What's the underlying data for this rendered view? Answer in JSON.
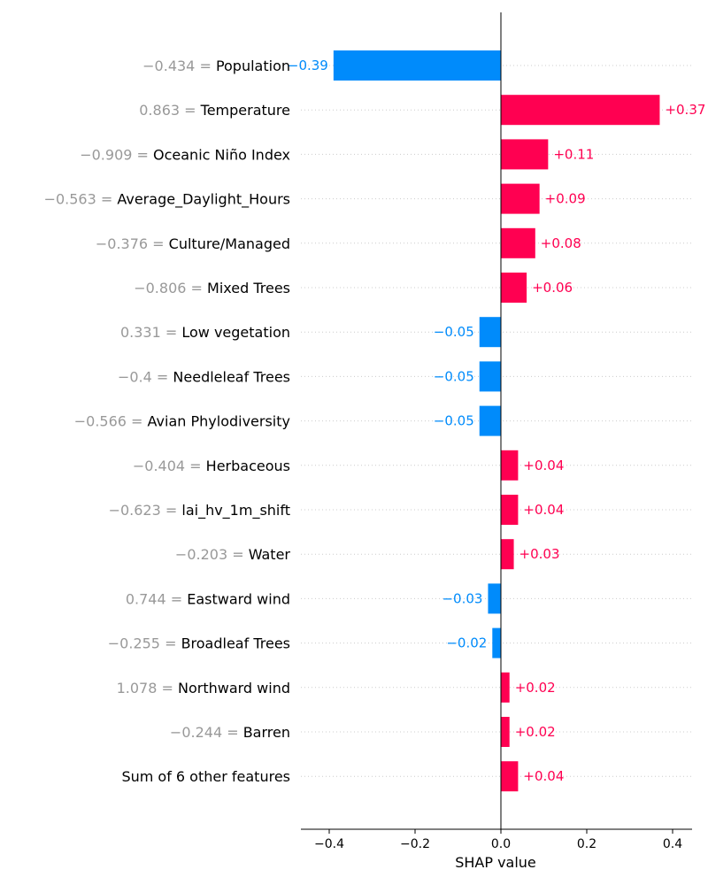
{
  "chart_data": {
    "type": "bar",
    "orientation": "horizontal",
    "xlabel": "SHAP value",
    "xlim": [
      -0.46,
      0.46
    ],
    "xticks": [
      -0.4,
      -0.2,
      0.0,
      0.2,
      0.4
    ],
    "xtick_labels": [
      "−0.4",
      "−0.2",
      "0.0",
      "0.2",
      "0.4"
    ],
    "colors": {
      "positive": "#ff0051",
      "negative": "#008bfb",
      "feature_value": "#999999",
      "feature_name": "#000000"
    },
    "features": [
      {
        "value_text": "−0.434 =",
        "name": "Population",
        "shap": -0.39,
        "label": "−0.39"
      },
      {
        "value_text": "0.863 =",
        "name": "Temperature",
        "shap": 0.37,
        "label": "+0.37"
      },
      {
        "value_text": "−0.909 =",
        "name": "Oceanic Niño Index",
        "shap": 0.11,
        "label": "+0.11"
      },
      {
        "value_text": "−0.563 =",
        "name": "Average_Daylight_Hours",
        "shap": 0.09,
        "label": "+0.09"
      },
      {
        "value_text": "−0.376 =",
        "name": "Culture/Managed",
        "shap": 0.08,
        "label": "+0.08"
      },
      {
        "value_text": "−0.806 =",
        "name": "Mixed Trees",
        "shap": 0.06,
        "label": "+0.06"
      },
      {
        "value_text": "0.331 =",
        "name": "Low vegetation",
        "shap": -0.05,
        "label": "−0.05"
      },
      {
        "value_text": "−0.4 =",
        "name": "Needleleaf Trees",
        "shap": -0.05,
        "label": "−0.05"
      },
      {
        "value_text": "−0.566 =",
        "name": "Avian Phylodiversity",
        "shap": -0.05,
        "label": "−0.05"
      },
      {
        "value_text": "−0.404 =",
        "name": "Herbaceous",
        "shap": 0.04,
        "label": "+0.04"
      },
      {
        "value_text": "−0.623 =",
        "name": "lai_hv_1m_shift",
        "shap": 0.04,
        "label": "+0.04"
      },
      {
        "value_text": "−0.203 =",
        "name": "Water",
        "shap": 0.03,
        "label": "+0.03"
      },
      {
        "value_text": "0.744 =",
        "name": "Eastward wind",
        "shap": -0.03,
        "label": "−0.03"
      },
      {
        "value_text": "−0.255 =",
        "name": "Broadleaf Trees",
        "shap": -0.02,
        "label": "−0.02"
      },
      {
        "value_text": "1.078 =",
        "name": "Northward wind",
        "shap": 0.02,
        "label": "+0.02"
      },
      {
        "value_text": "−0.244 =",
        "name": "Barren",
        "shap": 0.02,
        "label": "+0.02"
      },
      {
        "value_text": "",
        "name": "Sum of 6 other features",
        "shap": 0.04,
        "label": "+0.04"
      }
    ]
  }
}
